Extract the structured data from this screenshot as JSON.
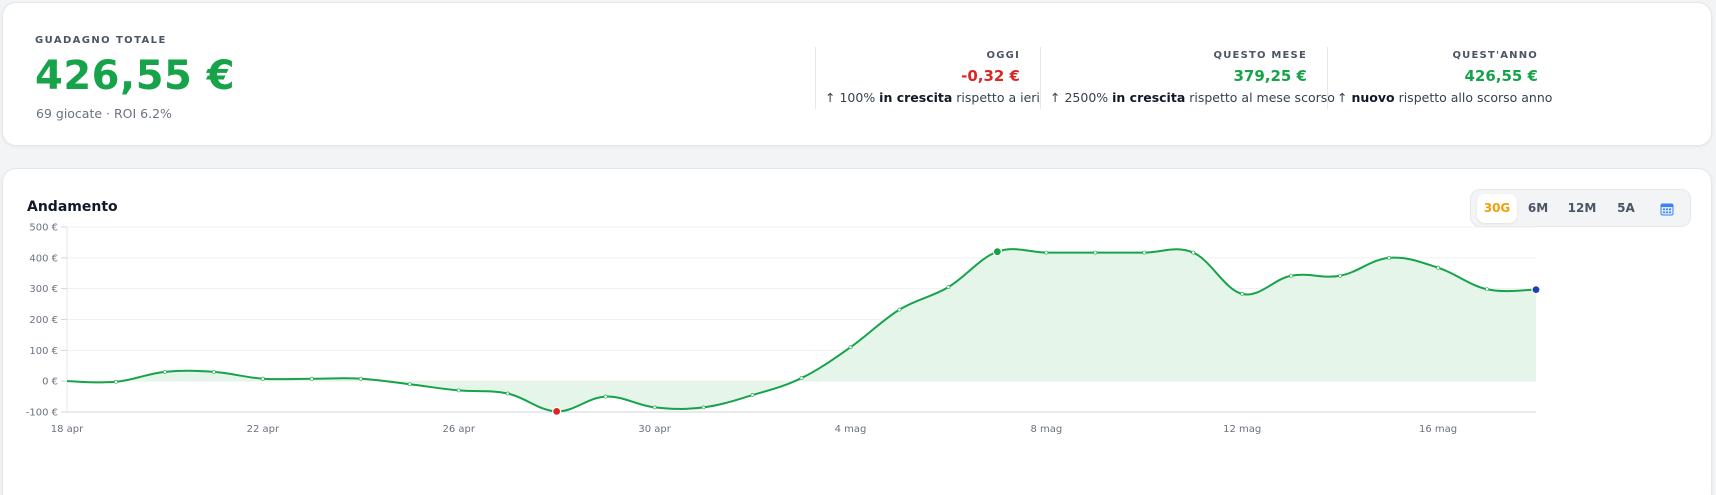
{
  "summary": {
    "total_label": "GUADAGNO TOTALE",
    "total_value": "426,55 €",
    "total_sub": "69 giocate · ROI 6.2%",
    "stats": [
      {
        "label": "OGGI",
        "value": "-0,32 €",
        "value_color": "#dc2626",
        "arrow": "↑",
        "note_pre": " 100% ",
        "note_strong": "in crescita",
        "note_post": " rispetto a ieri"
      },
      {
        "label": "QUESTO MESE",
        "value": "379,25 €",
        "value_color": "#16a34a",
        "arrow": "↑",
        "note_pre": " 2500% ",
        "note_strong": "in crescita",
        "note_post": " rispetto al mese scorso"
      },
      {
        "label": "QUEST'ANNO",
        "value": "426,55 €",
        "value_color": "#16a34a",
        "arrow": "↑",
        "note_pre": " ",
        "note_strong": "nuovo",
        "note_post": " rispetto allo scorso anno"
      }
    ]
  },
  "chart_panel": {
    "title": "Andamento",
    "ranges": [
      "30G",
      "6M",
      "12M",
      "5A"
    ],
    "active_range": "30G",
    "calendar_icon": "calendar-icon"
  },
  "chart_data": {
    "type": "area",
    "x": [
      "18 apr",
      "19 apr",
      "20 apr",
      "21 apr",
      "22 apr",
      "23 apr",
      "24 apr",
      "25 apr",
      "26 apr",
      "27 apr",
      "28 apr",
      "29 apr",
      "30 apr",
      "1 mag",
      "2 mag",
      "3 mag",
      "4 mag",
      "5 mag",
      "6 mag",
      "7 mag",
      "8 mag",
      "9 mag",
      "10 mag",
      "11 mag",
      "12 mag",
      "13 mag",
      "14 mag",
      "15 mag",
      "16 mag",
      "17 mag",
      "18 mag"
    ],
    "series": [
      {
        "values": [
          0,
          -2,
          30,
          30,
          8,
          8,
          8,
          -10,
          -30,
          -40,
          -98,
          -50,
          -85,
          -85,
          -45,
          10,
          110,
          232,
          305,
          420,
          417,
          417,
          417,
          417,
          283,
          342,
          342,
          400,
          368,
          298,
          297
        ]
      }
    ],
    "xticks": [
      "18 apr",
      "22 apr",
      "26 apr",
      "30 apr",
      "4 mag",
      "8 mag",
      "12 mag",
      "16 mag"
    ],
    "yticks": [
      "500 €",
      "400 €",
      "300 €",
      "200 €",
      "100 €",
      "0 €",
      "-100 €"
    ],
    "ylim": [
      -100,
      500
    ],
    "grid": true,
    "line_color": "#16a34a",
    "fill_color": "#e6f5ea",
    "min_marker_color": "#dc2626",
    "max_marker_color": "#16a34a",
    "last_marker_color": "#1e40af"
  }
}
